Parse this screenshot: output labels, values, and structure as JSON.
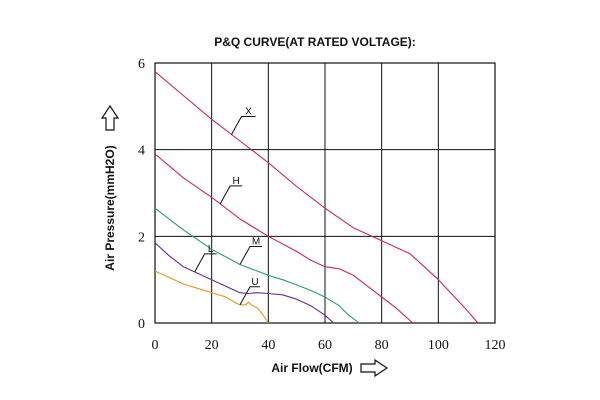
{
  "chart_data": {
    "type": "line",
    "title": "P&Q CURVE(AT RATED VOLTAGE):",
    "xlabel": "Air Flow(CFM)",
    "ylabel": "Air Pressure(mmH2O)",
    "xlim": [
      0,
      120
    ],
    "ylim": [
      0,
      6
    ],
    "xticks": [
      0,
      20,
      40,
      60,
      80,
      100,
      120
    ],
    "yticks": [
      0,
      2,
      4,
      6
    ],
    "grid": true,
    "series": [
      {
        "name": "X",
        "color": "#c8285a",
        "x": [
          0,
          10,
          20,
          30,
          40,
          50,
          60,
          70,
          80,
          90,
          95,
          100,
          105,
          110,
          114
        ],
        "y": [
          5.8,
          5.25,
          4.7,
          4.2,
          3.7,
          3.15,
          2.65,
          2.2,
          1.9,
          1.6,
          1.3,
          1.0,
          0.65,
          0.3,
          0
        ]
      },
      {
        "name": "H",
        "color": "#c8285a",
        "x": [
          0,
          10,
          20,
          30,
          40,
          50,
          55,
          60,
          65,
          70,
          75,
          80,
          85,
          91
        ],
        "y": [
          3.9,
          3.35,
          2.9,
          2.4,
          2.0,
          1.65,
          1.45,
          1.3,
          1.25,
          1.1,
          0.85,
          0.6,
          0.35,
          0
        ]
      },
      {
        "name": "M",
        "color": "#2e9a6e",
        "x": [
          0,
          10,
          20,
          30,
          40,
          45,
          50,
          55,
          60,
          65,
          68,
          72
        ],
        "y": [
          2.65,
          2.15,
          1.7,
          1.35,
          1.1,
          1.0,
          0.88,
          0.75,
          0.6,
          0.4,
          0.2,
          0
        ]
      },
      {
        "name": "L",
        "color": "#6a2e8c",
        "x": [
          0,
          5,
          10,
          15,
          20,
          25,
          30,
          33,
          36,
          40,
          45,
          50,
          55,
          60,
          63
        ],
        "y": [
          1.85,
          1.55,
          1.3,
          1.15,
          1.0,
          0.85,
          0.7,
          0.68,
          0.7,
          0.68,
          0.65,
          0.55,
          0.4,
          0.18,
          0
        ]
      },
      {
        "name": "U",
        "color": "#d99a2a",
        "x": [
          0,
          5,
          10,
          15,
          20,
          25,
          28,
          30,
          32,
          33,
          34,
          36,
          38,
          40
        ],
        "y": [
          1.2,
          1.05,
          0.9,
          0.8,
          0.7,
          0.6,
          0.48,
          0.42,
          0.42,
          0.48,
          0.42,
          0.35,
          0.2,
          0
        ]
      }
    ]
  }
}
